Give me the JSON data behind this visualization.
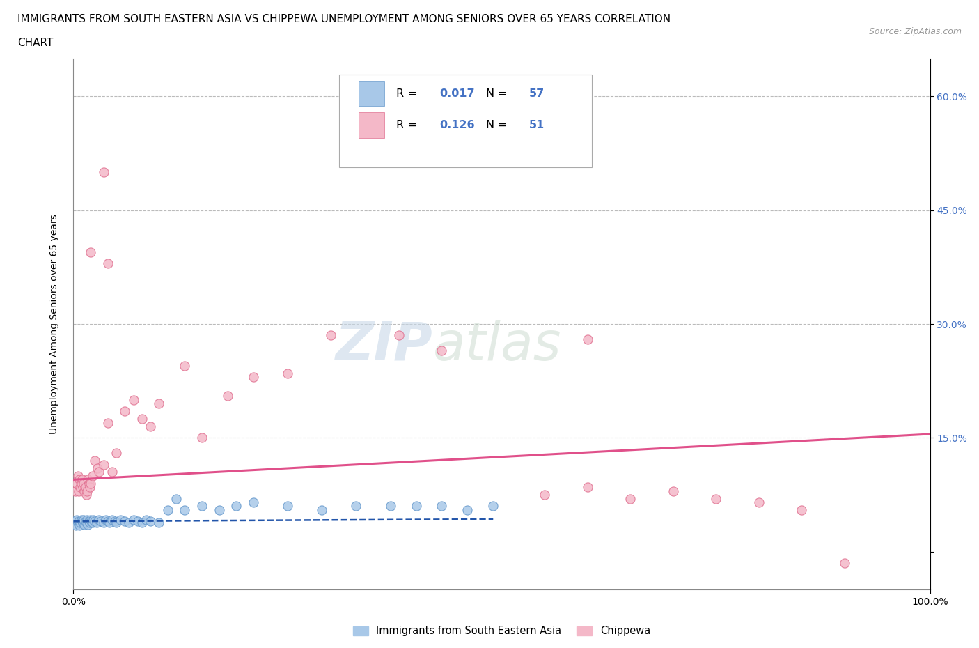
{
  "title_line1": "IMMIGRANTS FROM SOUTH EASTERN ASIA VS CHIPPEWA UNEMPLOYMENT AMONG SENIORS OVER 65 YEARS CORRELATION",
  "title_line2": "CHART",
  "source_text": "Source: ZipAtlas.com",
  "ylabel": "Unemployment Among Seniors over 65 years",
  "blue_color": "#a8c8e8",
  "blue_edge_color": "#6699cc",
  "pink_color": "#f4b8c8",
  "pink_edge_color": "#e07090",
  "blue_line_color": "#2255aa",
  "pink_line_color": "#e0508a",
  "tick_color": "#4472c4",
  "legend_label_blue": "Immigrants from South Eastern Asia",
  "legend_label_pink": "Chippewa",
  "R_blue": "0.017",
  "N_blue": "57",
  "R_pink": "0.126",
  "N_pink": "51",
  "watermark_zip": "ZIP",
  "watermark_atlas": "atlas",
  "grid_color": "#bbbbbb",
  "blue_x": [
    0.002,
    0.003,
    0.004,
    0.005,
    0.006,
    0.007,
    0.008,
    0.009,
    0.01,
    0.011,
    0.012,
    0.013,
    0.014,
    0.015,
    0.016,
    0.017,
    0.018,
    0.019,
    0.02,
    0.021,
    0.022,
    0.023,
    0.025,
    0.027,
    0.03,
    0.032,
    0.035,
    0.038,
    0.04,
    0.042,
    0.045,
    0.048,
    0.05,
    0.055,
    0.06,
    0.065,
    0.07,
    0.075,
    0.08,
    0.085,
    0.09,
    0.1,
    0.11,
    0.12,
    0.13,
    0.15,
    0.17,
    0.19,
    0.21,
    0.25,
    0.29,
    0.33,
    0.37,
    0.4,
    0.43,
    0.46,
    0.49
  ],
  "blue_y": [
    0.04,
    0.035,
    0.042,
    0.038,
    0.04,
    0.035,
    0.038,
    0.042,
    0.04,
    0.038,
    0.042,
    0.036,
    0.04,
    0.038,
    0.042,
    0.036,
    0.04,
    0.038,
    0.042,
    0.04,
    0.038,
    0.042,
    0.04,
    0.038,
    0.042,
    0.04,
    0.038,
    0.042,
    0.04,
    0.038,
    0.042,
    0.04,
    0.038,
    0.042,
    0.04,
    0.038,
    0.042,
    0.04,
    0.038,
    0.042,
    0.04,
    0.038,
    0.055,
    0.07,
    0.055,
    0.06,
    0.055,
    0.06,
    0.065,
    0.06,
    0.055,
    0.06,
    0.06,
    0.06,
    0.06,
    0.055,
    0.06
  ],
  "pink_x": [
    0.002,
    0.004,
    0.005,
    0.006,
    0.007,
    0.008,
    0.009,
    0.01,
    0.011,
    0.012,
    0.013,
    0.014,
    0.015,
    0.016,
    0.017,
    0.018,
    0.019,
    0.02,
    0.022,
    0.025,
    0.028,
    0.03,
    0.035,
    0.04,
    0.045,
    0.05,
    0.06,
    0.07,
    0.08,
    0.09,
    0.1,
    0.13,
    0.15,
    0.18,
    0.21,
    0.25,
    0.3,
    0.38,
    0.43,
    0.55,
    0.6,
    0.65,
    0.7,
    0.75,
    0.8,
    0.85,
    0.9,
    0.04,
    0.02,
    0.035,
    0.6
  ],
  "pink_y": [
    0.08,
    0.09,
    0.1,
    0.08,
    0.095,
    0.085,
    0.09,
    0.095,
    0.085,
    0.09,
    0.08,
    0.085,
    0.075,
    0.08,
    0.095,
    0.09,
    0.085,
    0.09,
    0.1,
    0.12,
    0.11,
    0.105,
    0.115,
    0.17,
    0.105,
    0.13,
    0.185,
    0.2,
    0.175,
    0.165,
    0.195,
    0.245,
    0.15,
    0.205,
    0.23,
    0.235,
    0.285,
    0.285,
    0.265,
    0.075,
    0.085,
    0.07,
    0.08,
    0.07,
    0.065,
    0.055,
    -0.015,
    0.38,
    0.395,
    0.5,
    0.28
  ],
  "blue_trend": [
    0.0,
    0.49,
    0.04,
    0.043
  ],
  "pink_trend": [
    0.0,
    1.0,
    0.095,
    0.155
  ]
}
